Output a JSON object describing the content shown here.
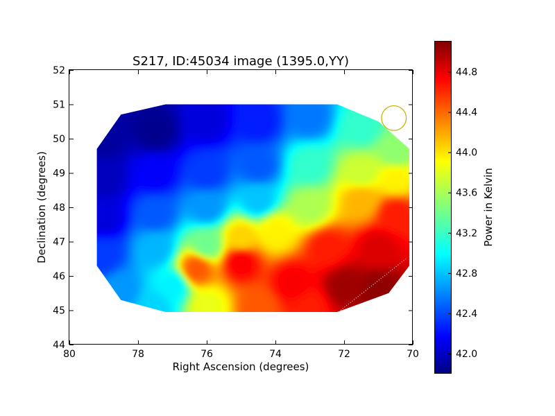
{
  "chart_data": {
    "type": "heatmap",
    "title": "S217, ID:45034 image (1395.0,YY)",
    "xlabel": "Right Ascension (degrees)",
    "ylabel": "Declination (degrees)",
    "xlim": [
      80,
      70
    ],
    "ylim": [
      44,
      52
    ],
    "x_ticks": [
      80,
      78,
      76,
      74,
      72,
      70
    ],
    "y_ticks": [
      44,
      45,
      46,
      47,
      48,
      49,
      50,
      51,
      52
    ],
    "colorbar": {
      "label": "Power in Kelvin",
      "range": [
        41.8,
        45.1
      ],
      "ticks": [
        "42.0",
        "42.4",
        "42.8",
        "43.2",
        "43.6",
        "44.0",
        "44.4",
        "44.8"
      ],
      "colormap": "jet"
    },
    "data_region": [
      [
        77.2,
        51.0
      ],
      [
        72.2,
        51.0
      ],
      [
        71.0,
        50.5
      ],
      [
        70.1,
        49.7
      ],
      [
        70.1,
        46.3
      ],
      [
        70.7,
        45.5
      ],
      [
        72.2,
        44.95
      ],
      [
        77.2,
        44.95
      ],
      [
        78.5,
        45.3
      ],
      [
        79.2,
        46.3
      ],
      [
        79.2,
        49.7
      ],
      [
        78.5,
        50.7
      ]
    ],
    "grid_points": [
      {
        "x": 79.0,
        "y": 50.0,
        "value": 41.9
      },
      {
        "x": 77.5,
        "y": 50.2,
        "value": 41.85
      },
      {
        "x": 76.0,
        "y": 50.5,
        "value": 42.1
      },
      {
        "x": 74.5,
        "y": 50.5,
        "value": 42.3
      },
      {
        "x": 73.0,
        "y": 50.6,
        "value": 42.6
      },
      {
        "x": 71.5,
        "y": 50.3,
        "value": 43.2
      },
      {
        "x": 70.5,
        "y": 49.6,
        "value": 43.5
      },
      {
        "x": 79.0,
        "y": 48.8,
        "value": 42.0
      },
      {
        "x": 77.5,
        "y": 49.0,
        "value": 42.2
      },
      {
        "x": 76.0,
        "y": 49.0,
        "value": 42.4
      },
      {
        "x": 74.5,
        "y": 49.2,
        "value": 42.5
      },
      {
        "x": 73.0,
        "y": 49.2,
        "value": 43.2
      },
      {
        "x": 71.5,
        "y": 49.0,
        "value": 43.7
      },
      {
        "x": 70.5,
        "y": 48.8,
        "value": 43.9
      },
      {
        "x": 79.0,
        "y": 47.7,
        "value": 42.1
      },
      {
        "x": 77.5,
        "y": 47.8,
        "value": 42.5
      },
      {
        "x": 76.0,
        "y": 48.0,
        "value": 42.7
      },
      {
        "x": 74.5,
        "y": 48.2,
        "value": 42.85
      },
      {
        "x": 73.0,
        "y": 48.0,
        "value": 43.6
      },
      {
        "x": 71.5,
        "y": 48.2,
        "value": 44.1
      },
      {
        "x": 70.5,
        "y": 47.8,
        "value": 44.6
      },
      {
        "x": 79.0,
        "y": 46.6,
        "value": 42.4
      },
      {
        "x": 77.5,
        "y": 46.8,
        "value": 42.8
      },
      {
        "x": 76.0,
        "y": 46.9,
        "value": 43.4
      },
      {
        "x": 75.0,
        "y": 47.1,
        "value": 44.0
      },
      {
        "x": 74.0,
        "y": 47.3,
        "value": 43.9
      },
      {
        "x": 72.5,
        "y": 46.8,
        "value": 44.6
      },
      {
        "x": 71.0,
        "y": 46.8,
        "value": 44.8
      },
      {
        "x": 78.5,
        "y": 45.6,
        "value": 42.7
      },
      {
        "x": 77.0,
        "y": 45.7,
        "value": 43.0
      },
      {
        "x": 76.3,
        "y": 46.2,
        "value": 44.4
      },
      {
        "x": 75.0,
        "y": 46.4,
        "value": 44.7
      },
      {
        "x": 73.5,
        "y": 45.8,
        "value": 44.7
      },
      {
        "x": 72.0,
        "y": 45.7,
        "value": 45.0
      },
      {
        "x": 71.0,
        "y": 45.6,
        "value": 45.05
      },
      {
        "x": 77.5,
        "y": 45.1,
        "value": 42.9
      },
      {
        "x": 76.0,
        "y": 45.1,
        "value": 43.8
      },
      {
        "x": 74.5,
        "y": 45.1,
        "value": 44.4
      },
      {
        "x": 73.0,
        "y": 45.1,
        "value": 44.6
      }
    ],
    "annotations": [
      {
        "type": "circle",
        "x": 70.55,
        "y": 50.6,
        "radius_deg": 0.36,
        "color": "#c8b400"
      },
      {
        "type": "dotted-line",
        "x1": 72.1,
        "y1": 45.0,
        "x2": 70.2,
        "y2": 46.5,
        "color": "#ffffff"
      }
    ]
  }
}
